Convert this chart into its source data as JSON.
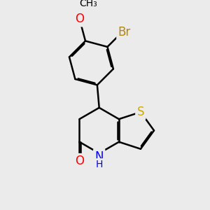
{
  "bg_color": "#ebebeb",
  "bond_color": "#000000",
  "bond_width": 1.8,
  "dbo": 0.018,
  "S_color": "#ccaa00",
  "O_color": "#ff0000",
  "N_color": "#0000ff",
  "Br_color": "#b8860b",
  "label_fontsize": 12,
  "label_fontsize_small": 10,
  "figure_width": 3.0,
  "figure_height": 3.0,
  "dpi": 100,
  "xlim": [
    0.0,
    3.0
  ],
  "ylim": [
    0.0,
    3.0
  ]
}
